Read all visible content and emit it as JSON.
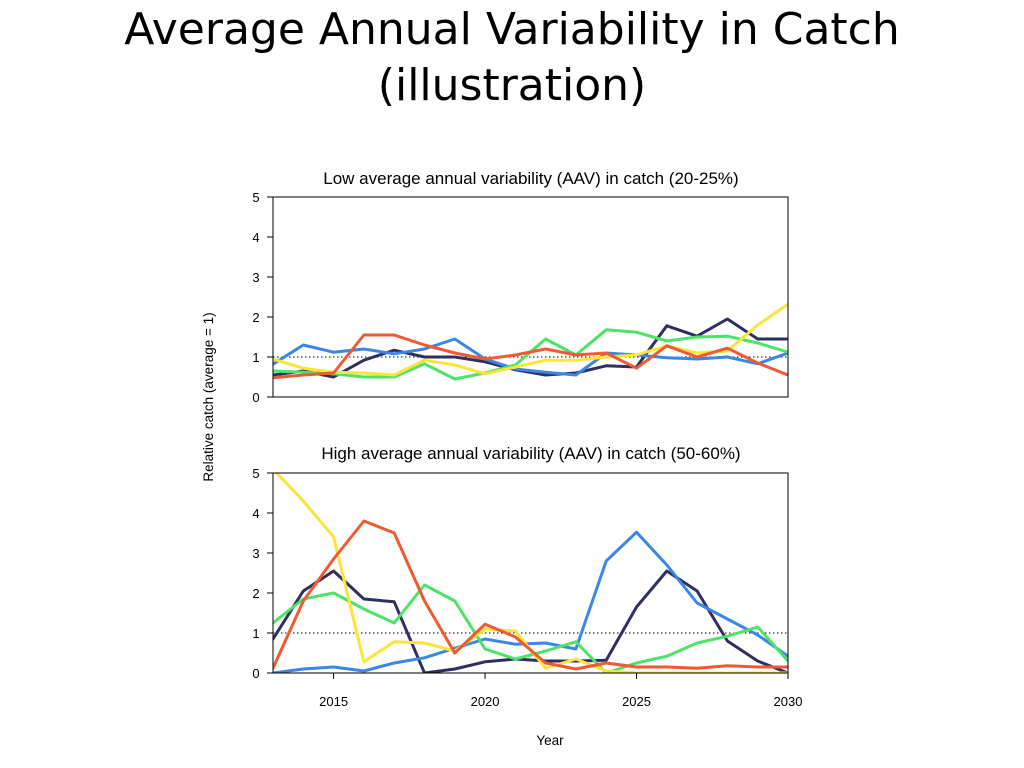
{
  "slide": {
    "title_line1": "Average Annual Variability in Catch",
    "title_line2": "(illustration)"
  },
  "chart_data": {
    "type": "line",
    "xlabel": "Year",
    "ylabel": "Relative catch (average = 1)",
    "xlim": [
      2013,
      2030
    ],
    "xticks": [
      2015,
      2020,
      2025,
      2030
    ],
    "yticks": [
      0,
      1,
      2,
      3,
      4,
      5
    ],
    "reference_line": 1,
    "colors": {
      "navy": "#2e3060",
      "blue": "#3b87e6",
      "green": "#4ce368",
      "yellow": "#fce43a",
      "orange": "#ef5a32"
    },
    "x": [
      2013,
      2014,
      2015,
      2016,
      2017,
      2018,
      2019,
      2020,
      2021,
      2022,
      2023,
      2024,
      2025,
      2026,
      2027,
      2028,
      2029,
      2030
    ],
    "panels": [
      {
        "title": "Low average annual variability (AAV) in catch (20-25%)",
        "ylim": [
          0,
          5
        ],
        "series": [
          {
            "color": "#2e3060",
            "values": [
              0.55,
              0.65,
              0.5,
              0.92,
              1.17,
              1.0,
              1.0,
              0.88,
              0.68,
              0.55,
              0.6,
              0.78,
              0.75,
              1.78,
              1.52,
              1.95,
              1.45,
              1.45
            ]
          },
          {
            "color": "#3b87e6",
            "values": [
              0.82,
              1.3,
              1.12,
              1.2,
              1.08,
              1.2,
              1.45,
              0.95,
              0.7,
              0.62,
              0.55,
              1.1,
              1.05,
              0.98,
              0.95,
              1.0,
              0.83,
              1.1
            ]
          },
          {
            "color": "#4ce368",
            "values": [
              0.65,
              0.62,
              0.58,
              0.5,
              0.5,
              0.83,
              0.45,
              0.6,
              0.8,
              1.45,
              1.05,
              1.68,
              1.62,
              1.4,
              1.5,
              1.52,
              1.35,
              1.12
            ]
          },
          {
            "color": "#fce43a",
            "values": [
              0.95,
              0.72,
              0.62,
              0.6,
              0.55,
              0.92,
              0.8,
              0.58,
              0.75,
              0.92,
              0.92,
              1.0,
              1.05,
              1.28,
              1.1,
              1.15,
              1.8,
              2.32
            ]
          },
          {
            "color": "#ef5a32",
            "values": [
              0.48,
              0.55,
              0.6,
              1.55,
              1.55,
              1.3,
              1.1,
              0.95,
              1.05,
              1.2,
              1.05,
              1.1,
              0.72,
              1.28,
              1.0,
              1.22,
              0.85,
              0.55
            ]
          }
        ]
      },
      {
        "title": "High average annual variability (AAV) in catch (50-60%)",
        "ylim": [
          0,
          5
        ],
        "series": [
          {
            "color": "#2e3060",
            "values": [
              0.85,
              2.05,
              2.55,
              1.85,
              1.78,
              0.0,
              0.1,
              0.28,
              0.35,
              0.3,
              0.3,
              0.32,
              1.65,
              2.55,
              2.05,
              0.8,
              0.3,
              0.0
            ]
          },
          {
            "color": "#3b87e6",
            "values": [
              0.0,
              0.1,
              0.15,
              0.05,
              0.25,
              0.38,
              0.62,
              0.85,
              0.72,
              0.75,
              0.6,
              2.8,
              3.52,
              2.7,
              1.75,
              1.35,
              0.95,
              0.42
            ]
          },
          {
            "color": "#4ce368",
            "values": [
              1.25,
              1.85,
              2.0,
              1.6,
              1.25,
              2.2,
              1.8,
              0.6,
              0.35,
              0.55,
              0.78,
              0.0,
              0.25,
              0.42,
              0.75,
              0.92,
              1.15,
              0.3
            ]
          },
          {
            "color": "#fce43a",
            "values": [
              5.1,
              4.3,
              3.4,
              0.28,
              0.78,
              0.75,
              0.55,
              1.1,
              1.05,
              0.12,
              0.35,
              0.05,
              0.0,
              0.0,
              0.0,
              0.0,
              0.0,
              0.0
            ]
          },
          {
            "color": "#ef5a32",
            "values": [
              0.12,
              1.8,
              2.85,
              3.8,
              3.5,
              1.8,
              0.5,
              1.22,
              0.9,
              0.25,
              0.1,
              0.25,
              0.15,
              0.15,
              0.12,
              0.18,
              0.15,
              0.15
            ]
          }
        ]
      }
    ]
  }
}
